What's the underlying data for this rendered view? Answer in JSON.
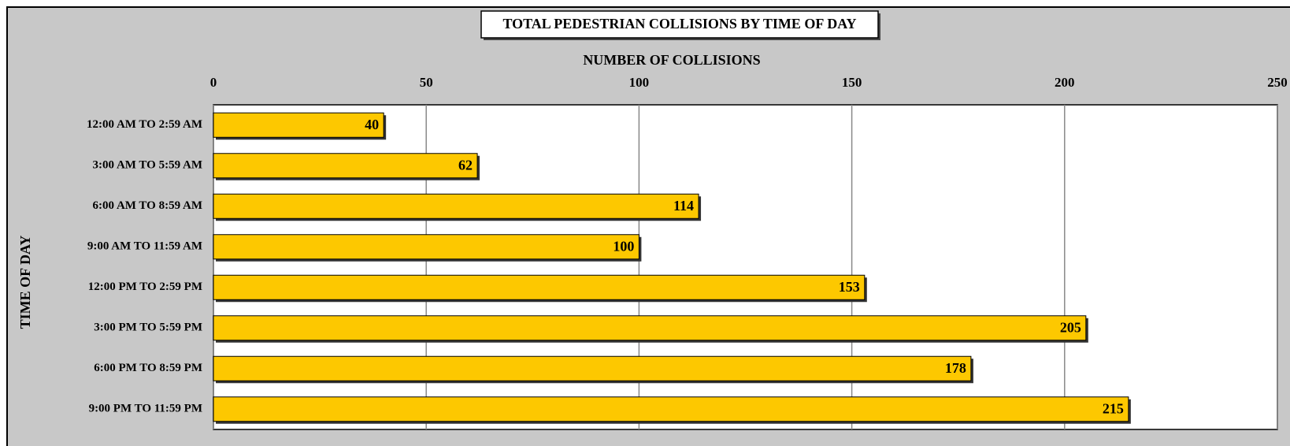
{
  "chart_data": {
    "type": "bar",
    "orientation": "horizontal",
    "title": "TOTAL PEDESTRIAN COLLISIONS BY TIME OF DAY",
    "x_label": "NUMBER OF COLLISIONS",
    "y_label": "TIME OF DAY",
    "categories": [
      "12:00 AM TO 2:59 AM",
      "3:00 AM TO 5:59 AM",
      "6:00 AM TO 8:59 AM",
      "9:00 AM TO 11:59 AM",
      "12:00 PM TO 2:59 PM",
      "3:00 PM TO 5:59 PM",
      "6:00 PM TO 8:59 PM",
      "9:00 PM TO 11:59 PM"
    ],
    "values": [
      40,
      62,
      114,
      100,
      153,
      205,
      178,
      215
    ],
    "color": "#fdc800",
    "xlim": [
      0,
      250
    ],
    "xticks": [
      0,
      50,
      100,
      150,
      200,
      250
    ],
    "grid": true
  }
}
